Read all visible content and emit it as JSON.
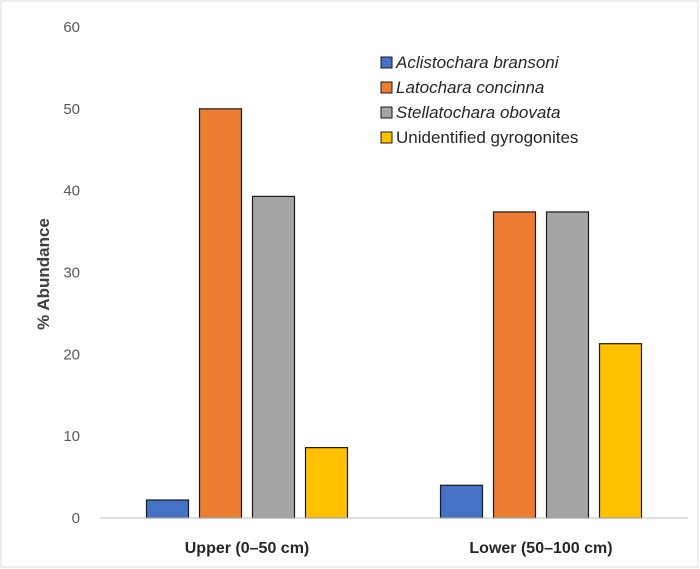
{
  "chart_data": {
    "type": "bar",
    "categories": [
      "Upper (0–50 cm)",
      "Lower (50–100 cm)"
    ],
    "series": [
      {
        "name": "Aclistochara bransoni",
        "values": [
          2.2,
          4.0
        ],
        "color": "#4472C4",
        "italic": true
      },
      {
        "name": "Latochara concinna",
        "values": [
          50.0,
          37.4
        ],
        "color": "#ED7D31",
        "italic": true
      },
      {
        "name": "Stellatochara obovata",
        "values": [
          39.3,
          37.4
        ],
        "color": "#A5A5A5",
        "italic": true
      },
      {
        "name": "Unidentified gyrogonites",
        "values": [
          8.6,
          21.3
        ],
        "color": "#FFC000",
        "italic": false
      }
    ],
    "title": "",
    "xlabel": "",
    "ylabel": "% Abundance",
    "ylim": [
      0,
      60
    ],
    "yticks": [
      0,
      10,
      20,
      30,
      40,
      50,
      60
    ],
    "grid": false,
    "legend": "top-right"
  }
}
